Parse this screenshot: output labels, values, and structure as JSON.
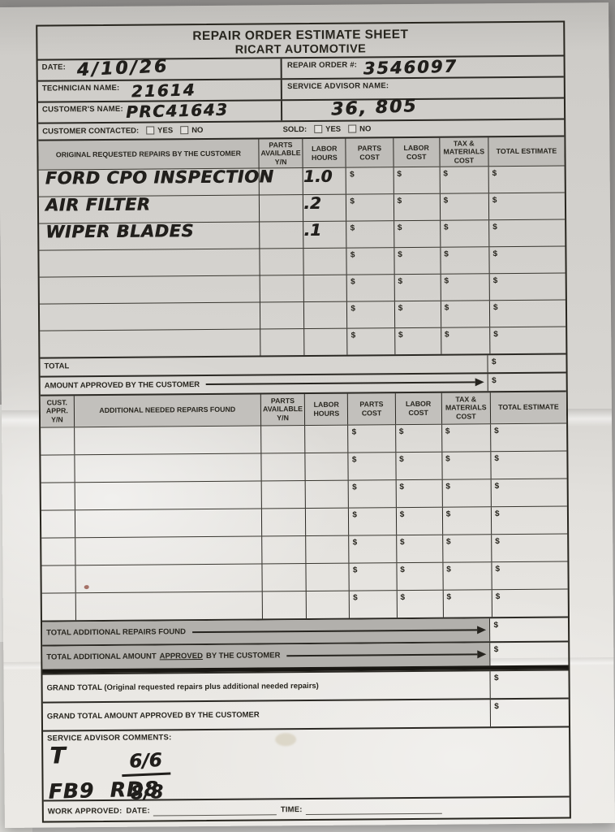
{
  "currency": "$",
  "header": {
    "title": "REPAIR ORDER ESTIMATE SHEET",
    "subtitle": "RICART AUTOMOTIVE"
  },
  "info": {
    "date_label": "DATE:",
    "date_value": "4/10/26",
    "repair_order_label": "REPAIR ORDER #:",
    "repair_order_value": "3546097",
    "technician_label": "TECHNICIAN NAME:",
    "technician_value": "21614",
    "advisor_label": "SERVICE ADVISOR NAME:",
    "advisor_value": "",
    "customer_label": "CUSTOMER'S NAME:",
    "customer_value": "PRC41643",
    "odometer_value": "36, 805",
    "contacted_label": "CUSTOMER CONTACTED:",
    "sold_label": "SOLD:",
    "yes": "YES",
    "no": "NO"
  },
  "columns": {
    "parts_available": "PARTS AVAILABLE Y/N",
    "labor_hours": "LABOR HOURS",
    "parts_cost": "PARTS COST",
    "labor_cost": "LABOR COST",
    "tax_materials": "TAX & MATERIALS COST",
    "total_estimate": "TOTAL ESTIMATE"
  },
  "original": {
    "col_description": "ORIGINAL REQUESTED REPAIRS BY THE CUSTOMER",
    "rows": [
      {
        "description": "FORD CPO INSPECTION",
        "parts_available": "",
        "labor_hours": "1.0"
      },
      {
        "description": "AIR FILTER",
        "parts_available": "",
        "labor_hours": ".2"
      },
      {
        "description": "WIPER BLADES",
        "parts_available": "",
        "labor_hours": ".1"
      },
      {
        "description": "",
        "parts_available": "",
        "labor_hours": ""
      },
      {
        "description": "",
        "parts_available": "",
        "labor_hours": ""
      },
      {
        "description": "",
        "parts_available": "",
        "labor_hours": ""
      },
      {
        "description": "",
        "parts_available": "",
        "labor_hours": ""
      }
    ],
    "total_label": "TOTAL",
    "approved_label": "AMOUNT APPROVED BY THE CUSTOMER"
  },
  "additional": {
    "col_cust_appr": "CUST. APPR. Y/N",
    "col_description": "ADDITIONAL NEEDED REPAIRS FOUND",
    "rows": [
      {
        "cust_appr": "",
        "description": "",
        "parts_available": "",
        "labor_hours": ""
      },
      {
        "cust_appr": "",
        "description": "",
        "parts_available": "",
        "labor_hours": ""
      },
      {
        "cust_appr": "",
        "description": "",
        "parts_available": "",
        "labor_hours": ""
      },
      {
        "cust_appr": "",
        "description": "",
        "parts_available": "",
        "labor_hours": ""
      },
      {
        "cust_appr": "",
        "description": "",
        "parts_available": "",
        "labor_hours": ""
      },
      {
        "cust_appr": "",
        "description": "",
        "parts_available": "",
        "labor_hours": ""
      },
      {
        "cust_appr": "",
        "description": "",
        "parts_available": "",
        "labor_hours": ""
      }
    ],
    "total_label": "TOTAL ADDITIONAL REPAIRS FOUND",
    "approved_label_prefix": "TOTAL ADDITIONAL AMOUNT",
    "approved_label_underlined": "APPROVED",
    "approved_label_suffix": "BY THE CUSTOMER"
  },
  "summary": {
    "grand_total_label": "GRAND TOTAL (Original requested repairs plus additional needed repairs)",
    "grand_approved_label": "GRAND TOTAL AMOUNT APPROVED BY THE CUSTOMER",
    "comments_label": "SERVICE ADVISOR COMMENTS:",
    "comment_t": "T",
    "comment_fraction_top": "6/6",
    "comment_fraction_bottom": "8/8",
    "comment_codes": "FB9  RD8",
    "work_approved_label": "WORK APPROVED:",
    "date_label": "DATE:",
    "time_label": "TIME:"
  }
}
